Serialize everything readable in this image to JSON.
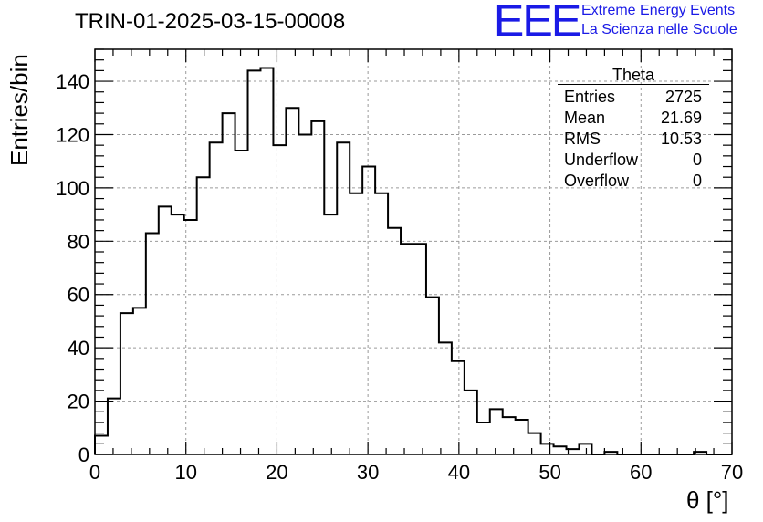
{
  "header": {
    "run_title": "TRIN-01-2025-03-15-00008",
    "logo_text": "EEE",
    "logo_line1": "Extreme Energy Events",
    "logo_line2": "La Scienza nelle Scuole"
  },
  "stats": {
    "title": "Theta",
    "rows": [
      {
        "label": "Entries",
        "value": "2725"
      },
      {
        "label": "Mean",
        "value": "21.69"
      },
      {
        "label": "RMS",
        "value": "10.53"
      },
      {
        "label": "Underflow",
        "value": "0"
      },
      {
        "label": "Overflow",
        "value": "0"
      }
    ]
  },
  "colors": {
    "line": "#000000",
    "grid": "#9a9a9a",
    "logo": "#1a1ae6"
  },
  "chart_data": {
    "type": "bar",
    "subtype": "histogram-step",
    "title": "TRIN-01-2025-03-15-00008",
    "xlabel": "θ [°]",
    "ylabel": "Entries/bin",
    "xlim": [
      0,
      70
    ],
    "ylim": [
      0,
      152
    ],
    "bin_width": 1.4,
    "x_ticks": [
      0,
      10,
      20,
      30,
      40,
      50,
      60,
      70
    ],
    "y_ticks": [
      0,
      20,
      40,
      60,
      80,
      100,
      120,
      140
    ],
    "grid": true,
    "values": [
      7,
      21,
      53,
      55,
      83,
      93,
      90,
      88,
      104,
      117,
      128,
      114,
      144,
      145,
      116,
      130,
      120,
      125,
      90,
      117,
      98,
      108,
      98,
      85,
      79,
      79,
      59,
      42,
      35,
      24,
      12,
      17,
      14,
      13,
      8,
      4,
      3,
      2,
      4,
      0,
      1,
      0,
      0,
      0,
      0,
      0,
      0,
      1,
      0,
      0
    ]
  }
}
